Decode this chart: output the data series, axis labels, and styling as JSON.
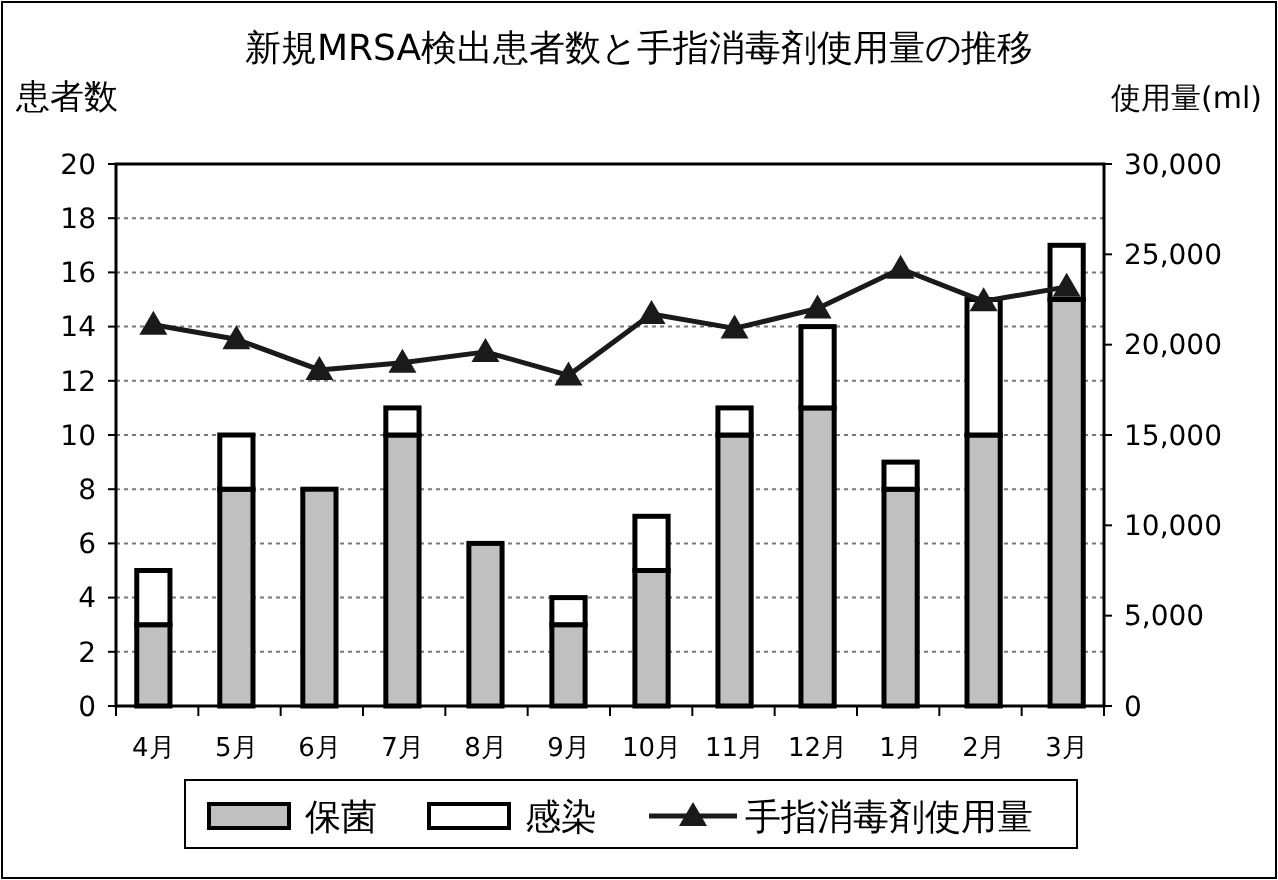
{
  "chart_data": {
    "type": "bar",
    "title": "新規MRSA検出患者数と手指消毒剤使用量の推移",
    "ylabel": "患者数",
    "y2label": "使用量(ml)",
    "categories": [
      "4月",
      "5月",
      "6月",
      "7月",
      "8月",
      "9月",
      "10月",
      "11月",
      "12月",
      "1月",
      "2月",
      "3月"
    ],
    "stacked": true,
    "series": [
      {
        "name": "保菌",
        "color": "#c0c0c0",
        "values": [
          3,
          8,
          8,
          10,
          6,
          3,
          5,
          10,
          11,
          8,
          10,
          15
        ]
      },
      {
        "name": "感染",
        "color": "#ffffff",
        "values": [
          2,
          2,
          0,
          1,
          0,
          1,
          2,
          1,
          3,
          1,
          5,
          2
        ]
      },
      {
        "name": "手指消毒剤使用量",
        "type": "line",
        "axis": "y2",
        "color": "#1a1a1a",
        "marker": "triangle",
        "values": [
          21100,
          20300,
          18600,
          19000,
          19600,
          18300,
          21700,
          20900,
          22000,
          24200,
          22400,
          23200
        ]
      }
    ],
    "ylim": [
      0,
      20
    ],
    "yticks": [
      0,
      2,
      4,
      6,
      8,
      10,
      12,
      14,
      16,
      18,
      20
    ],
    "y2lim": [
      0,
      30000
    ],
    "y2ticks": [
      0,
      {
        "value": 5000,
        "label": "5,000"
      },
      {
        "value": 10000,
        "label": "10,000"
      },
      {
        "value": 15000,
        "label": "15,000"
      },
      {
        "value": 20000,
        "label": "20,000"
      },
      {
        "value": 25000,
        "label": "25,000"
      },
      {
        "value": 30000,
        "label": "30,000"
      }
    ],
    "grid": "y",
    "legend": "bottom"
  }
}
